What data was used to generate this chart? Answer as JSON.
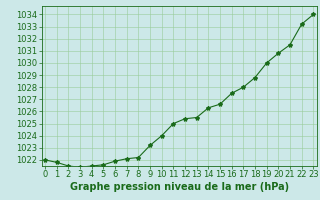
{
  "x": [
    0,
    1,
    2,
    3,
    4,
    5,
    6,
    7,
    8,
    9,
    10,
    11,
    12,
    13,
    14,
    15,
    16,
    17,
    18,
    19,
    20,
    21,
    22,
    23
  ],
  "y": [
    1022.0,
    1021.8,
    1021.5,
    1021.4,
    1021.5,
    1021.6,
    1021.9,
    1022.1,
    1022.2,
    1023.2,
    1024.0,
    1025.0,
    1025.4,
    1025.5,
    1026.3,
    1026.6,
    1027.5,
    1028.0,
    1028.8,
    1030.0,
    1030.8,
    1031.5,
    1033.2,
    1034.0
  ],
  "line_color": "#1a6b1a",
  "marker": "*",
  "marker_size": 3,
  "bg_color": "#cce8e8",
  "grid_color": "#99cc99",
  "xlabel": "Graphe pression niveau de la mer (hPa)",
  "xlabel_fontsize": 7,
  "ylabel_fontsize": 6,
  "tick_fontsize": 6,
  "ytick_min": 1022,
  "ytick_max": 1034,
  "ytick_step": 1,
  "xlim": [
    -0.3,
    23.3
  ],
  "ylim": [
    1021.5,
    1034.7
  ]
}
